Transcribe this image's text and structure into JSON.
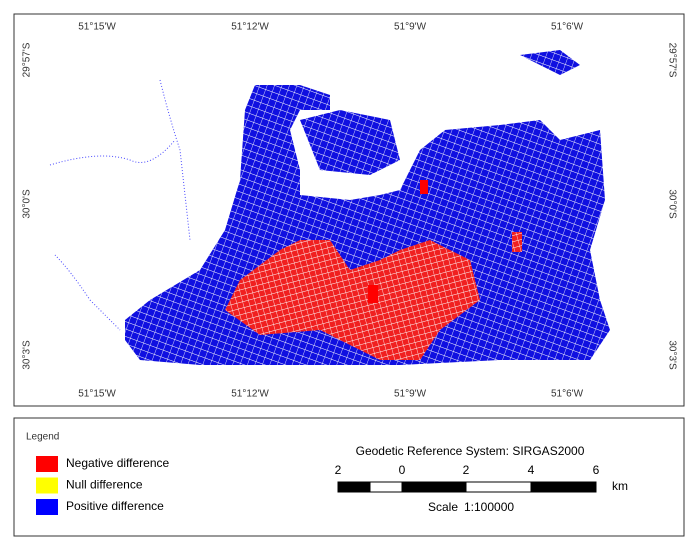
{
  "map": {
    "top_labels": [
      "51°15'W",
      "51°12'W",
      "51°9'W",
      "51°6'W"
    ],
    "bottom_labels": [
      "51°15'W",
      "51°12'W",
      "51°9'W",
      "51°6'W"
    ],
    "left_labels": [
      "29°57'S",
      "30°0'S",
      "30°3'S"
    ],
    "right_labels": [
      "29°57'S",
      "30°0'S",
      "30°3'S"
    ]
  },
  "legend": {
    "title": "Legend",
    "items": [
      {
        "label": "Negative difference",
        "color": "#ff0000"
      },
      {
        "label": "Null difference",
        "color": "#ffff00"
      },
      {
        "label": "Positive difference",
        "color": "#0000ff"
      }
    ]
  },
  "reference_system": "Geodetic Reference System: SIRGAS2000",
  "scale_bar": {
    "labels": [
      "2",
      "0",
      "2",
      "4",
      "6"
    ],
    "unit": "km"
  },
  "scale": {
    "label": "Scale",
    "value": "1:100000"
  }
}
